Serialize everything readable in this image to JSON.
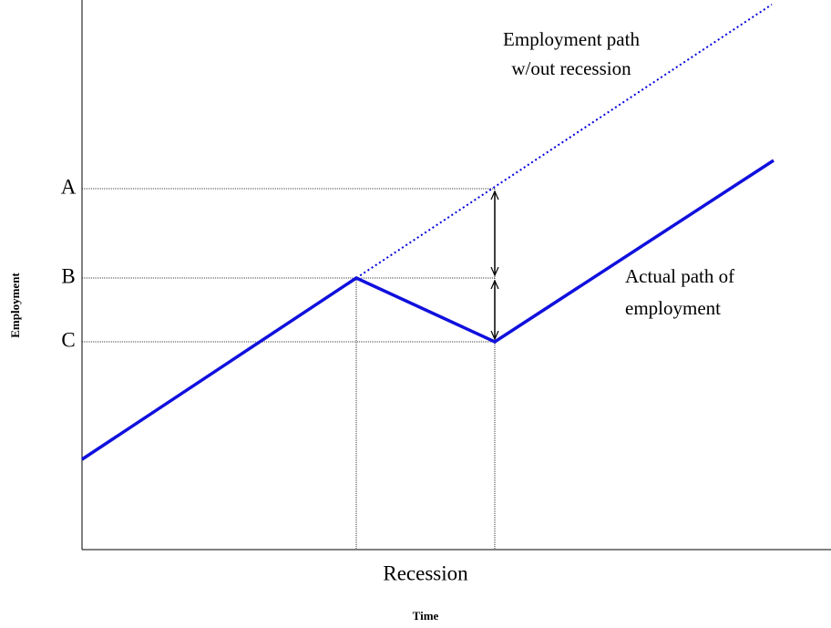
{
  "axes": {
    "x_label": "Time",
    "y_label": "Employment"
  },
  "levels": [
    "A",
    "B",
    "C"
  ],
  "period_label": "Recession",
  "potential_path_label": [
    "Employment path",
    "w/out recession"
  ],
  "actual_path_label": [
    "Actual path of",
    "employment"
  ]
}
